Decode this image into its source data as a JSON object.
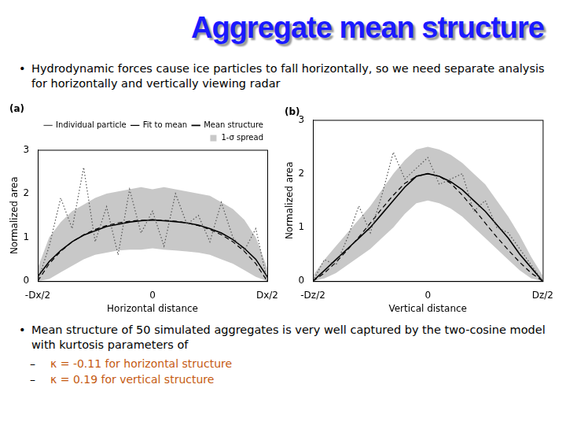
{
  "title": "Aggregate mean structure",
  "bullets": [
    {
      "text": "Hydrodynamic forces cause ice particles to fall horizontally, so we need separate analysis for horizontally and vertically viewing radar"
    },
    {
      "text": "Mean structure of 50 simulated aggregates is very well captured by the two-cosine model with kurtosis parameters of",
      "items": [
        "κ = -0.11 for horizontal structure",
        "κ = 0.19 for vertical structure"
      ]
    }
  ],
  "chart_data": [
    {
      "type": "line",
      "title": "(a)",
      "x_label": "Horizontal distance",
      "y_label": "Normalized area",
      "xlim": [
        -0.5,
        0.5
      ],
      "xticks": [
        {
          "value": -0.5,
          "label": "-Dx/2"
        },
        0,
        {
          "value": 0.5,
          "label": "Dx/2"
        }
      ],
      "ylim": [
        0,
        3
      ],
      "yticks": [
        0,
        1,
        2,
        3
      ],
      "grid": false,
      "legend": "upper right",
      "x": [
        -0.5,
        -0.45,
        -0.4,
        -0.35,
        -0.3,
        -0.25,
        -0.2,
        -0.15,
        -0.1,
        -0.05,
        0,
        0.05,
        0.1,
        0.15,
        0.2,
        0.25,
        0.3,
        0.35,
        0.4,
        0.45,
        0.5
      ],
      "series": [
        {
          "name": "Mean structure",
          "color": "#000000",
          "line_style": "solid",
          "values": [
            0.1,
            0.45,
            0.7,
            0.9,
            1.05,
            1.15,
            1.25,
            1.3,
            1.35,
            1.38,
            1.4,
            1.38,
            1.36,
            1.33,
            1.28,
            1.2,
            1.1,
            0.95,
            0.75,
            0.5,
            0.1
          ]
        },
        {
          "name": "1-σ spread",
          "color": "#c8c8c8",
          "type": "band",
          "lower": [
            0,
            0.05,
            0.2,
            0.35,
            0.5,
            0.6,
            0.65,
            0.7,
            0.72,
            0.72,
            0.75,
            0.72,
            0.7,
            0.68,
            0.65,
            0.6,
            0.5,
            0.4,
            0.25,
            0.1,
            0
          ],
          "upper": [
            0.3,
            1.0,
            1.35,
            1.6,
            1.75,
            1.9,
            2.0,
            2.05,
            2.1,
            2.15,
            2.1,
            2.15,
            2.1,
            2.05,
            2.0,
            1.95,
            1.8,
            1.65,
            1.4,
            1.0,
            0.3
          ]
        },
        {
          "name": "Fit to mean",
          "color": "#000000",
          "line_style": "dashed",
          "values": [
            0,
            0.4,
            0.68,
            0.9,
            1.06,
            1.18,
            1.27,
            1.33,
            1.37,
            1.39,
            1.4,
            1.39,
            1.37,
            1.33,
            1.27,
            1.18,
            1.06,
            0.9,
            0.68,
            0.4,
            0
          ]
        },
        {
          "name": "Individual particle",
          "color": "#555555",
          "line_style": "dotted",
          "values": [
            0,
            0.8,
            1.9,
            1.2,
            2.6,
            0.9,
            1.7,
            0.6,
            2.1,
            1.1,
            1.6,
            0.8,
            2.0,
            1.3,
            1.5,
            0.9,
            1.8,
            1.0,
            0.7,
            1.2,
            0
          ]
        }
      ]
    },
    {
      "type": "line",
      "title": "(b)",
      "x_label": "Vertical distance",
      "y_label": "Normalized area",
      "xlim": [
        -0.5,
        0.5
      ],
      "xticks": [
        {
          "value": -0.5,
          "label": "-Dz/2"
        },
        0,
        {
          "value": 0.5,
          "label": "Dz/2"
        }
      ],
      "ylim": [
        0,
        3
      ],
      "yticks": [
        0,
        1,
        2,
        3
      ],
      "grid": false,
      "x": [
        -0.5,
        -0.45,
        -0.4,
        -0.35,
        -0.3,
        -0.25,
        -0.2,
        -0.15,
        -0.1,
        -0.05,
        0,
        0.05,
        0.1,
        0.15,
        0.2,
        0.25,
        0.3,
        0.35,
        0.4,
        0.45,
        0.5
      ],
      "series": [
        {
          "name": "Mean structure",
          "color": "#000000",
          "line_style": "solid",
          "values": [
            0,
            0.2,
            0.4,
            0.6,
            0.8,
            1.0,
            1.25,
            1.5,
            1.75,
            1.95,
            2.0,
            1.95,
            1.85,
            1.7,
            1.5,
            1.3,
            1.05,
            0.8,
            0.5,
            0.25,
            0
          ]
        },
        {
          "name": "1-σ spread",
          "color": "#c8c8c8",
          "type": "band",
          "lower": [
            0,
            0.05,
            0.15,
            0.3,
            0.45,
            0.6,
            0.8,
            1.0,
            1.25,
            1.45,
            1.5,
            1.45,
            1.35,
            1.2,
            1.0,
            0.8,
            0.6,
            0.4,
            0.2,
            0.05,
            0
          ],
          "upper": [
            0.1,
            0.4,
            0.65,
            0.9,
            1.15,
            1.4,
            1.7,
            2.0,
            2.25,
            2.45,
            2.5,
            2.45,
            2.35,
            2.2,
            2.0,
            1.8,
            1.5,
            1.2,
            0.85,
            0.45,
            0.1
          ]
        },
        {
          "name": "Fit to mean",
          "color": "#000000",
          "line_style": "dashed",
          "values": [
            0,
            0.15,
            0.35,
            0.58,
            0.82,
            1.08,
            1.35,
            1.6,
            1.82,
            1.95,
            2.0,
            1.95,
            1.82,
            1.6,
            1.35,
            1.08,
            0.82,
            0.58,
            0.35,
            0.15,
            0
          ]
        },
        {
          "name": "Individual particle",
          "color": "#555555",
          "line_style": "dotted",
          "values": [
            0,
            0.4,
            0.3,
            0.8,
            1.4,
            0.9,
            1.6,
            2.4,
            1.9,
            2.1,
            2.3,
            1.8,
            1.9,
            2.0,
            1.3,
            1.5,
            1.0,
            0.9,
            0.6,
            0.3,
            0
          ]
        }
      ]
    }
  ]
}
